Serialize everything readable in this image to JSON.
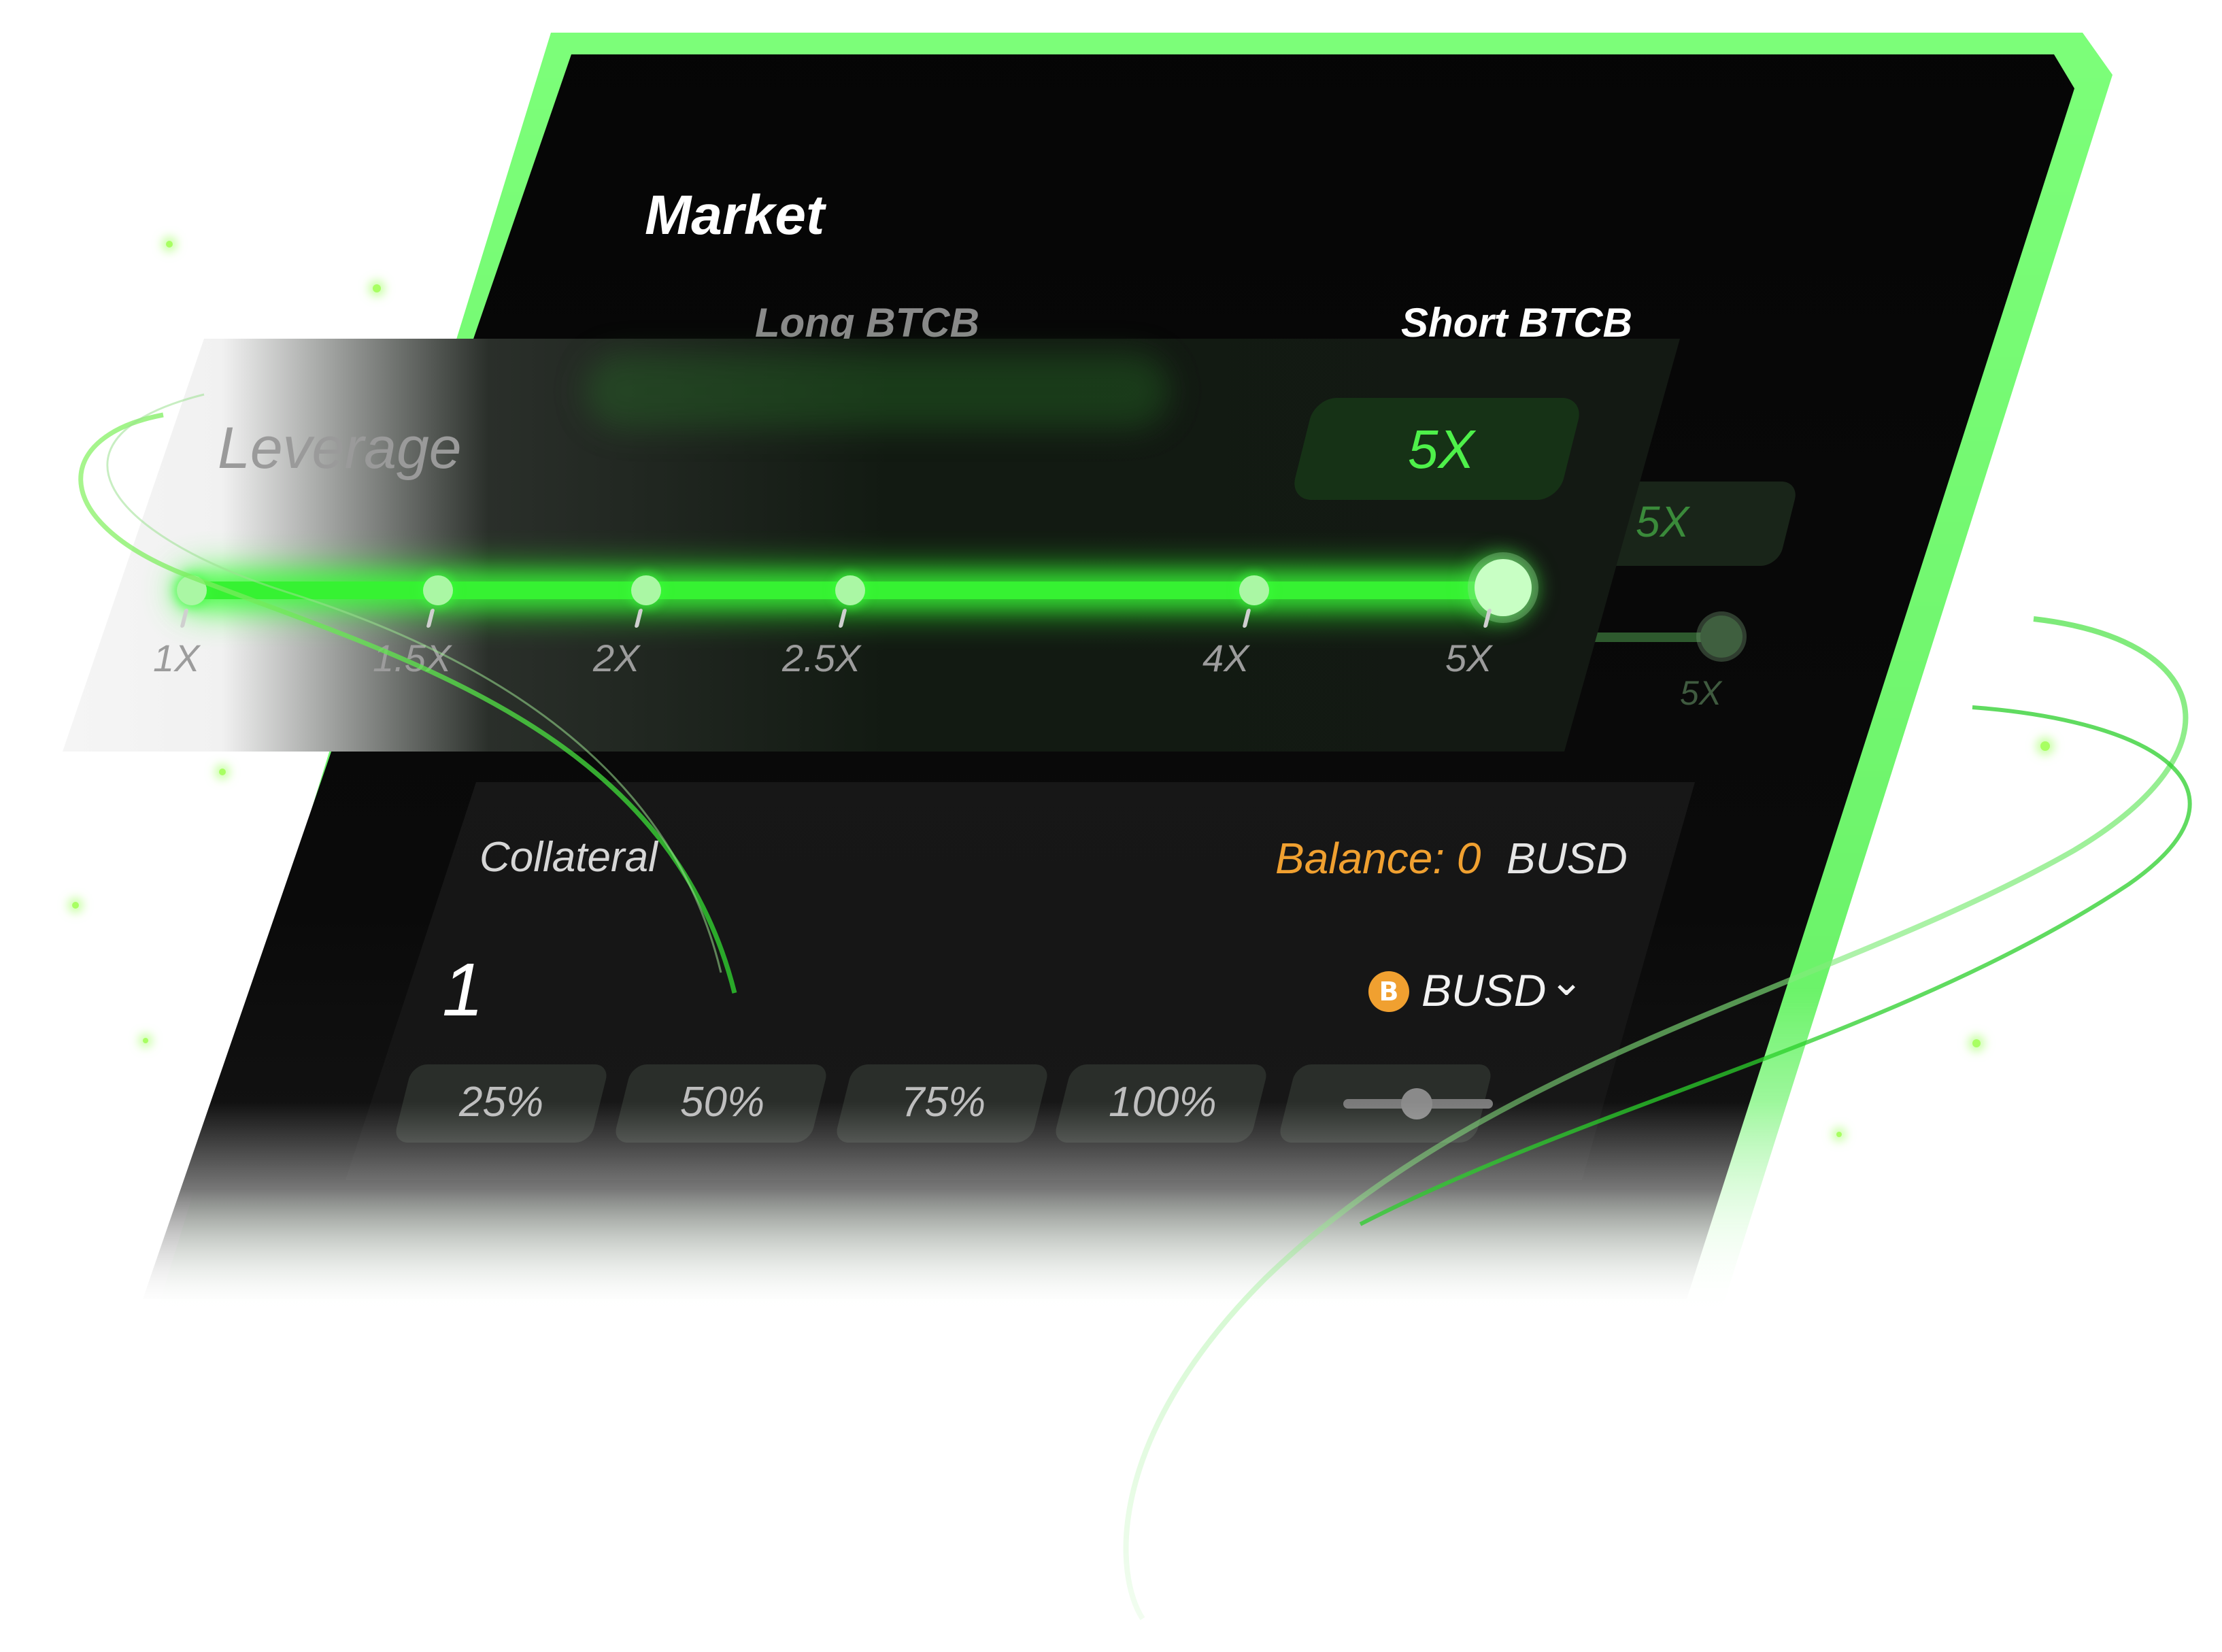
{
  "market": {
    "title": "Market",
    "tabs": [
      {
        "label": "Long BTCB",
        "active": false
      },
      {
        "label": "Short BTCB",
        "active": true
      }
    ]
  },
  "leverage": {
    "label": "Leverage",
    "value_label": "5X",
    "selected_fraction": 1.0,
    "ticks": [
      "1X",
      "1.5X",
      "2X",
      "2.5X",
      "4X",
      "5X"
    ],
    "ghost_value_label": "5X",
    "ghost_tick_label": "5X"
  },
  "collateral": {
    "label": "Collateral",
    "balance_label": "Balance: 0",
    "balance_unit": "BUSD",
    "amount": "1",
    "token": "BUSD",
    "token_icon": "busd-coin-icon",
    "percent_buttons": [
      "25%",
      "50%",
      "75%",
      "100%"
    ],
    "slider_icon": "slider-icon"
  },
  "colors": {
    "accent": "#36f232",
    "balance": "#f0a030",
    "panel": "#0a0a0a"
  }
}
